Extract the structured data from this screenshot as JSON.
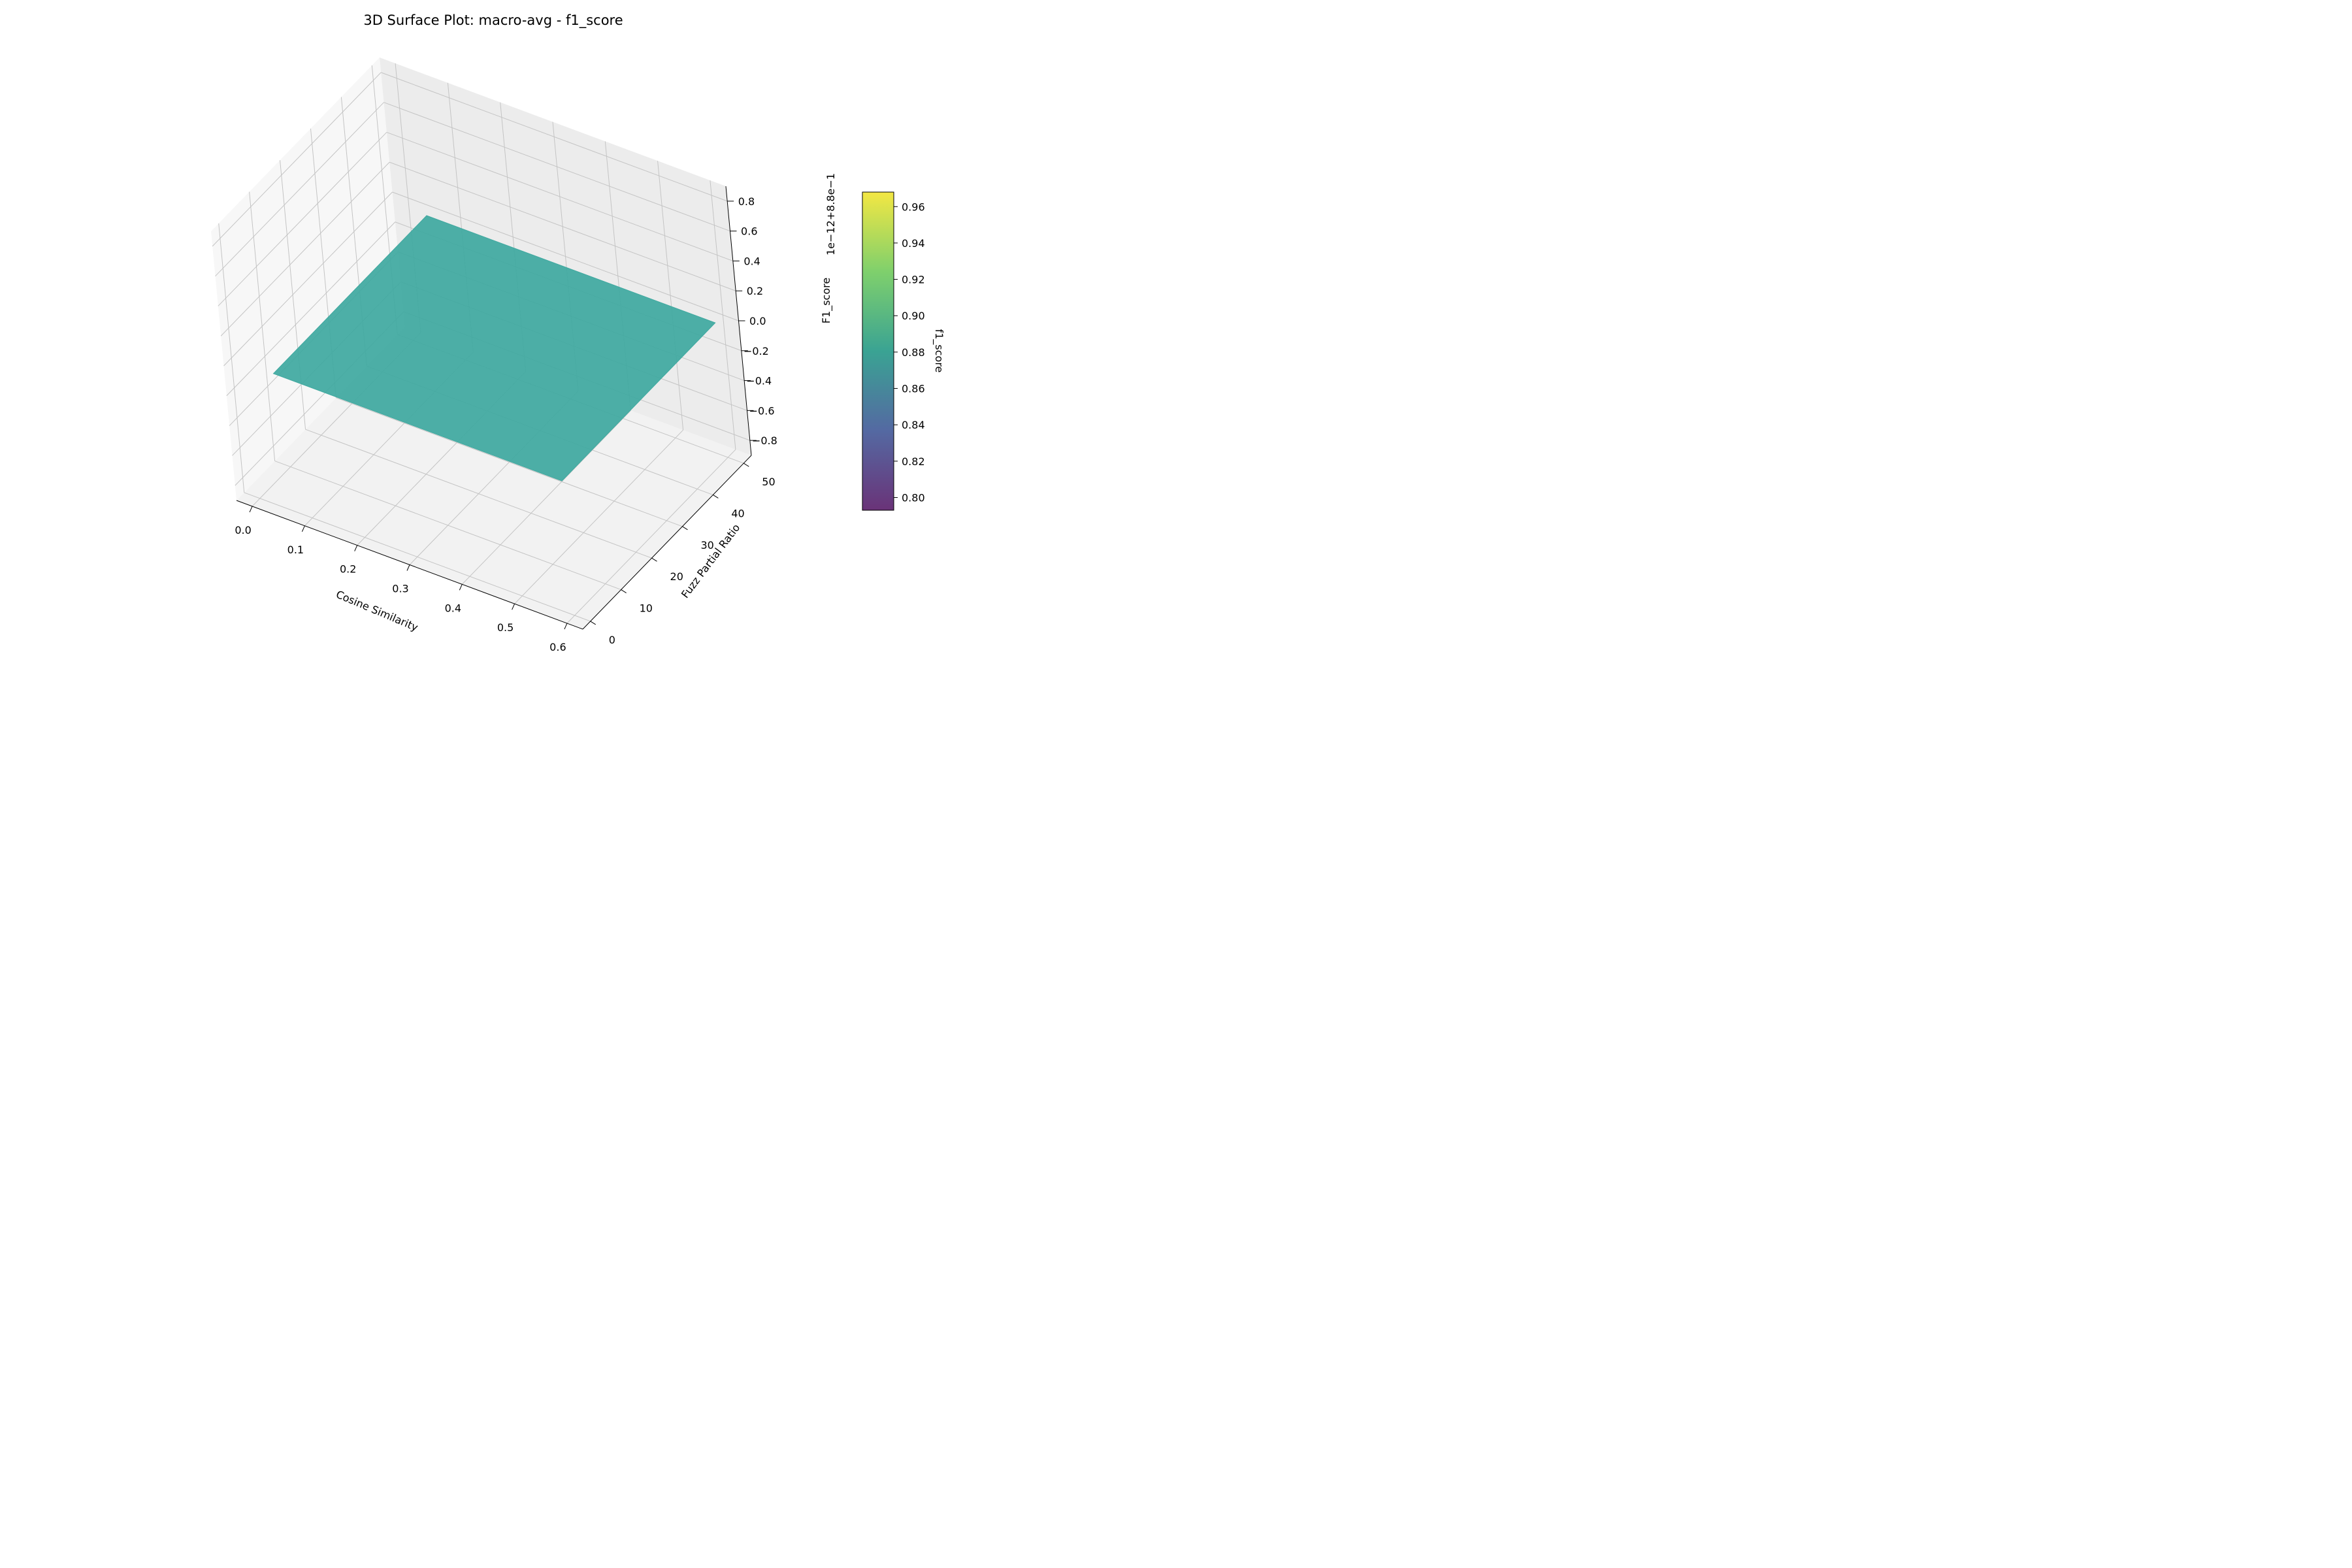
{
  "chart_data": {
    "type": "surface",
    "title": "3D Surface Plot: macro-avg - f1_score",
    "xlabel": "Cosine Similarity",
    "ylabel": "Fuzz Partial Ratio",
    "zlabel": "F1_score",
    "z_offset_label": "1e−12+8.8e−1",
    "x_ticks": [
      "0.0",
      "0.1",
      "0.2",
      "0.3",
      "0.4",
      "0.5",
      "0.6"
    ],
    "y_ticks": [
      "0",
      "10",
      "20",
      "30",
      "40",
      "50"
    ],
    "z_ticks": [
      "−0.8",
      "−0.6",
      "−0.4",
      "−0.2",
      "0.0",
      "0.2",
      "0.4",
      "0.6",
      "0.8"
    ],
    "xlim": [
      -0.03,
      0.63
    ],
    "ylim": [
      -2.5,
      52.5
    ],
    "zlim": [
      -0.9,
      0.9
    ],
    "surface": {
      "x_range": [
        0.05,
        0.6
      ],
      "y_range": [
        0,
        50
      ],
      "z_value": 0.88,
      "color": "#40a9a0"
    },
    "colorbar": {
      "label": "f1_score",
      "ticks": [
        "0.80",
        "0.82",
        "0.84",
        "0.86",
        "0.88",
        "0.90",
        "0.92",
        "0.94",
        "0.96"
      ],
      "range": [
        0.793,
        0.968
      ],
      "colormap": "viridis"
    },
    "grid": true
  }
}
